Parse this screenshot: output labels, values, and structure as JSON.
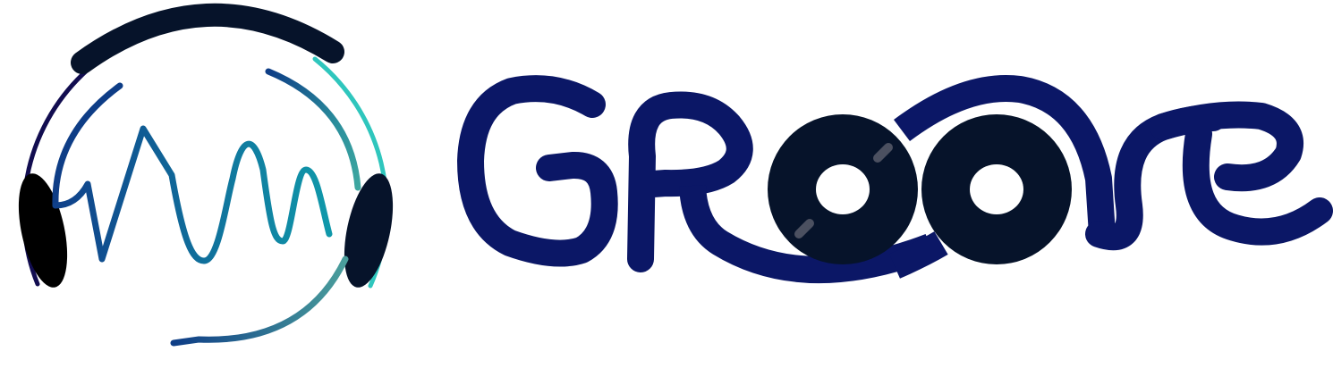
{
  "logo": {
    "wordmark": "Groove",
    "colors": {
      "navy": "#0b1766",
      "black": "#06132a",
      "teal": "#2fc6bd",
      "blue": "#0e3d86",
      "accent_dot": "#4b5060"
    },
    "icons": [
      "headphones-icon",
      "sound-wave-icon",
      "vinyl-record-icon"
    ]
  }
}
